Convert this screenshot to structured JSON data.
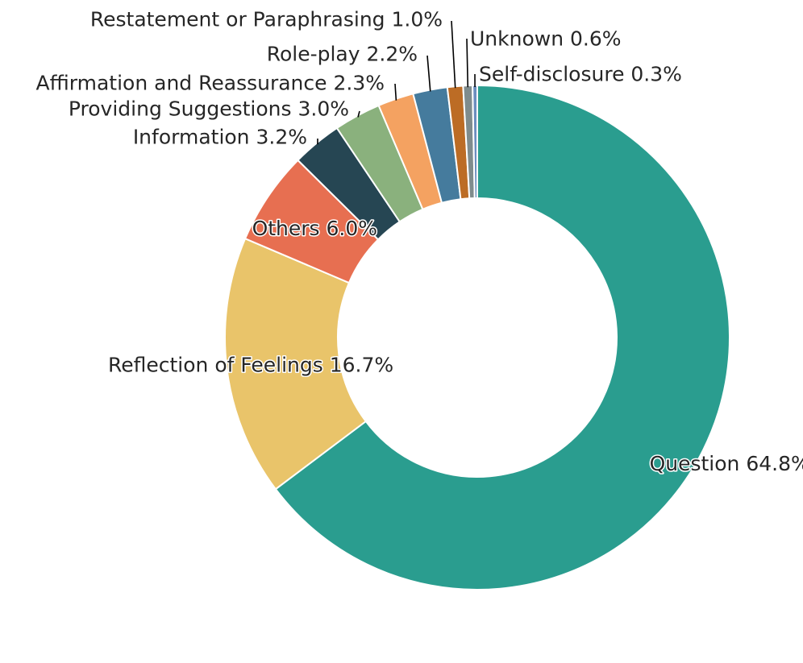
{
  "chart_data": {
    "type": "pie",
    "donut": true,
    "title": "",
    "legend": "none",
    "slices": [
      {
        "label": "Question",
        "value": 64.8,
        "display": "Question 64.8%",
        "color": "#2a9d8f"
      },
      {
        "label": "Reflection of Feelings",
        "value": 16.7,
        "display": "Reflection of Feelings 16.7%",
        "color": "#e9c46a"
      },
      {
        "label": "Others",
        "value": 6.0,
        "display": "Others 6.0%",
        "color": "#e76f51"
      },
      {
        "label": "Information",
        "value": 3.2,
        "display": "Information 3.2%",
        "color": "#264653"
      },
      {
        "label": "Providing Suggestions",
        "value": 3.0,
        "display": "Providing Suggestions 3.0%",
        "color": "#8ab17d"
      },
      {
        "label": "Affirmation and Reassurance",
        "value": 2.3,
        "display": "Affirmation and Reassurance 2.3%",
        "color": "#f4a261"
      },
      {
        "label": "Role-play",
        "value": 2.2,
        "display": "Role-play 2.2%",
        "color": "#457b9d"
      },
      {
        "label": "Restatement or Paraphrasing",
        "value": 1.0,
        "display": "Restatement or Paraphrasing 1.0%",
        "color": "#bc6c25"
      },
      {
        "label": "Unknown",
        "value": 0.6,
        "display": "Unknown 0.6%",
        "color": "#7f8c8d"
      },
      {
        "label": "Self-disclosure",
        "value": 0.3,
        "display": "Self-disclosure 0.3%",
        "color": "#6c8ebf"
      }
    ]
  }
}
